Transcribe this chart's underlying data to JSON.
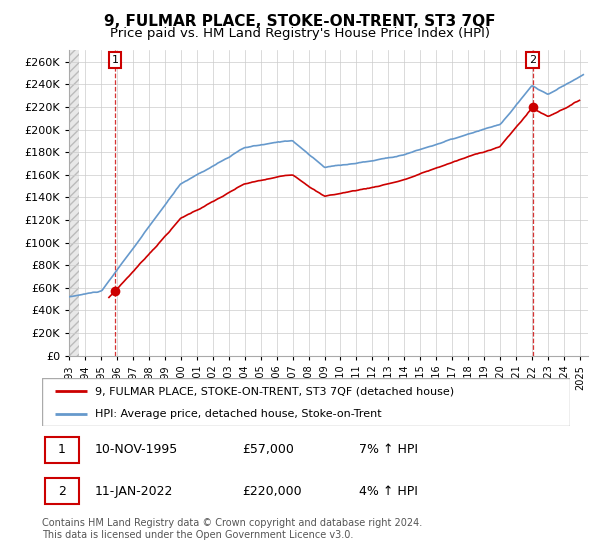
{
  "title": "9, FULMAR PLACE, STOKE-ON-TRENT, ST3 7QF",
  "subtitle": "Price paid vs. HM Land Registry's House Price Index (HPI)",
  "ylim": [
    0,
    270000
  ],
  "yticks": [
    0,
    20000,
    40000,
    60000,
    80000,
    100000,
    120000,
    140000,
    160000,
    180000,
    200000,
    220000,
    240000,
    260000
  ],
  "xlim_start": 1993.0,
  "xlim_end": 2025.5,
  "sale1_date": 1995.87,
  "sale1_price": 57000,
  "sale2_date": 2022.04,
  "sale2_price": 220000,
  "legend_line1": "9, FULMAR PLACE, STOKE-ON-TRENT, ST3 7QF (detached house)",
  "legend_line2": "HPI: Average price, detached house, Stoke-on-Trent",
  "footnote": "Contains HM Land Registry data © Crown copyright and database right 2024.\nThis data is licensed under the Open Government Licence v3.0.",
  "line_color_red": "#cc0000",
  "line_color_blue": "#6699cc",
  "grid_color": "#cccccc",
  "title_fontsize": 11,
  "subtitle_fontsize": 9.5
}
